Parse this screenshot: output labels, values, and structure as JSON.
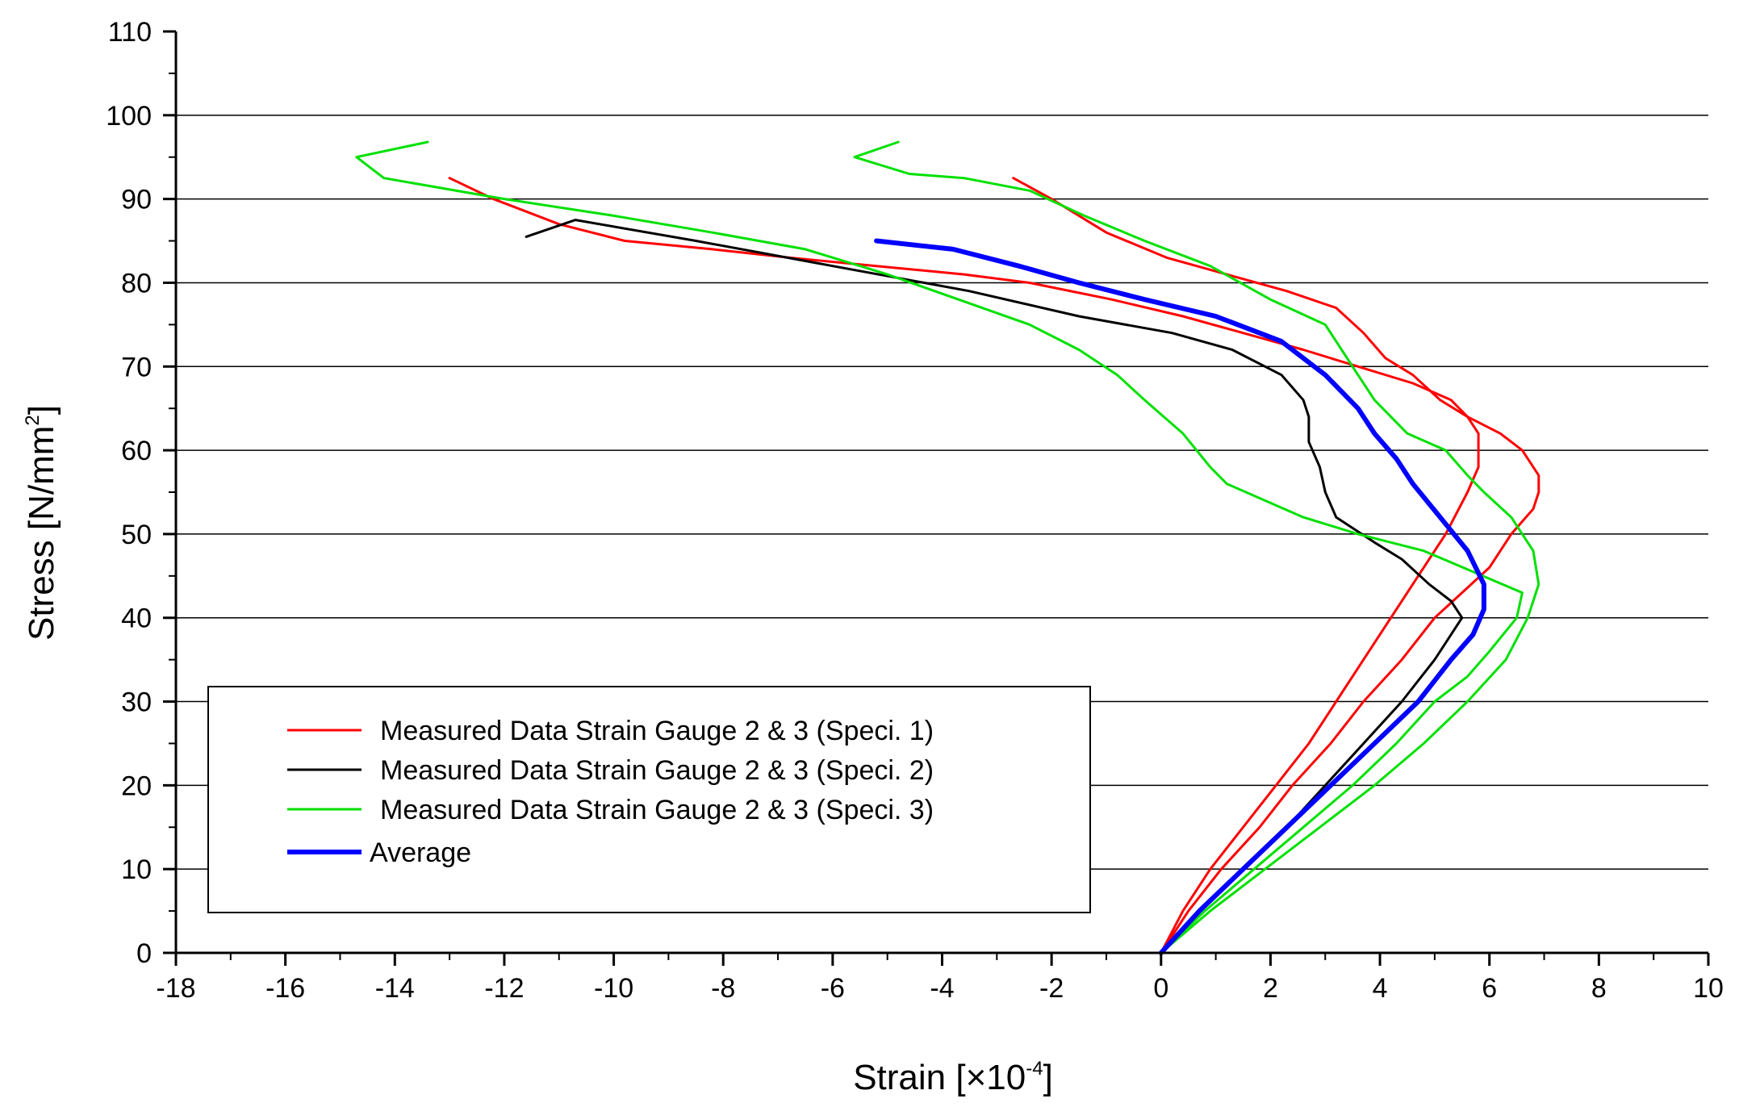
{
  "chart_data": {
    "type": "line",
    "xlabel_main": "Strain [×10",
    "xlabel_exp": "-4",
    "xlabel_end": "]",
    "ylabel_main": "Stress [N/mm",
    "ylabel_exp": "2",
    "ylabel_end": "]",
    "xlim": [
      -18,
      10
    ],
    "ylim": [
      0,
      110
    ],
    "x_ticks": [
      -18,
      -16,
      -14,
      -12,
      -10,
      -8,
      -6,
      -4,
      -2,
      0,
      2,
      4,
      6,
      8,
      10
    ],
    "x_tick_labels": [
      "-18",
      "-16",
      "-14",
      "-12",
      "-10",
      "-8",
      "-6",
      "-4",
      "-2",
      "0",
      "2",
      "4",
      "6",
      "8",
      "10"
    ],
    "y_ticks": [
      0,
      10,
      20,
      30,
      40,
      50,
      60,
      70,
      80,
      90,
      100,
      110
    ],
    "y_tick_labels": [
      "0",
      "10",
      "20",
      "30",
      "40",
      "50",
      "60",
      "70",
      "80",
      "90",
      "100",
      "110"
    ],
    "grid": "horizontal",
    "legend_position": "bottom-left",
    "series": [
      {
        "name": "Measured Data Strain Gauge 2 & 3 (Speci. 1) curve A",
        "legend": "Measured Data Strain Gauge 2 & 3 (Speci. 1)",
        "color": "#ff0000",
        "width": 3,
        "x": [
          0.0,
          0.4,
          0.9,
          1.5,
          2.1,
          2.7,
          3.2,
          3.7,
          4.2,
          4.7,
          5.2,
          5.6,
          5.8,
          5.8,
          5.8,
          5.6,
          5.3,
          4.6,
          3.6,
          2.6,
          1.5,
          0.4,
          -0.9,
          -2.4,
          -3.6,
          -5.2,
          -6.8,
          -8.2,
          -9.8,
          -11.0,
          -12.2,
          -13.0
        ],
        "y": [
          0,
          5,
          10,
          15,
          20,
          25,
          30,
          35,
          40,
          45,
          50,
          55,
          58,
          60,
          62,
          64,
          66,
          68,
          70,
          72,
          74,
          76,
          78,
          80,
          81,
          82,
          83,
          84,
          85,
          87,
          90,
          92.5
        ]
      },
      {
        "name": "Measured Data Strain Gauge 2 & 3 (Speci. 1) curve B",
        "legend": "",
        "color": "#ff0000",
        "width": 3,
        "x": [
          0.0,
          0.5,
          1.1,
          1.8,
          2.4,
          3.1,
          3.7,
          4.4,
          5.0,
          5.5,
          6.0,
          6.4,
          6.8,
          6.9,
          6.9,
          6.6,
          6.2,
          5.6,
          5.1,
          4.6,
          4.1,
          3.7,
          3.2,
          2.3,
          1.2,
          0.1,
          -1.0,
          -2.0,
          -2.7
        ],
        "y": [
          0,
          5,
          10,
          15,
          20,
          25,
          30,
          35,
          40,
          43,
          46,
          50,
          53,
          55,
          57,
          60,
          62,
          64,
          66,
          69,
          71,
          74,
          77,
          79,
          81,
          83,
          86,
          90,
          92.5
        ]
      },
      {
        "name": "Measured Data Strain Gauge 2 & 3 (Speci. 2)",
        "legend": "Measured Data Strain Gauge 2 & 3 (Speci. 2)",
        "color": "#000000",
        "width": 3,
        "x": [
          0.0,
          0.7,
          1.5,
          2.3,
          3.0,
          3.7,
          4.4,
          5.0,
          5.4,
          5.5,
          5.3,
          4.9,
          4.4,
          3.9,
          3.2,
          3.0,
          2.9,
          2.7,
          2.7,
          2.6,
          2.2,
          1.3,
          0.2,
          -1.5,
          -3.5,
          -6.0,
          -8.5,
          -10.7,
          -11.6
        ],
        "y": [
          0,
          5,
          10,
          15,
          20,
          25,
          30,
          35,
          39,
          40,
          42,
          44,
          47,
          49,
          52,
          55,
          58,
          61,
          64,
          66,
          69,
          72,
          74,
          76,
          79,
          82,
          85,
          87.5,
          85.5
        ]
      },
      {
        "name": "Measured Data Strain Gauge 2 & 3 (Speci. 3) curve A",
        "legend": "Measured Data Strain Gauge 2 & 3 (Speci. 3)",
        "color": "#00e000",
        "width": 3,
        "x": [
          0.0,
          0.8,
          1.7,
          2.6,
          3.5,
          4.3,
          5.0,
          5.6,
          6.0,
          6.5,
          6.6,
          4.8,
          3.6,
          2.6,
          1.9,
          1.2,
          0.9,
          0.4,
          -0.3,
          -0.8,
          -1.5,
          -2.4,
          -3.7,
          -5.0,
          -6.5,
          -8.2,
          -10.0,
          -12.0,
          -14.2,
          -14.7,
          -13.4
        ],
        "y": [
          0,
          5,
          10,
          15,
          20,
          25,
          30,
          33,
          36,
          40,
          43,
          48,
          50,
          52,
          54,
          56,
          58,
          62,
          66,
          69,
          72,
          75,
          78,
          81,
          84,
          86,
          88,
          90,
          92.5,
          95,
          96.8
        ]
      },
      {
        "name": "Measured Data Strain Gauge 2 & 3 (Speci. 3) curve B",
        "legend": "",
        "color": "#00e000",
        "width": 3,
        "x": [
          0.0,
          0.9,
          1.9,
          2.9,
          3.9,
          4.8,
          5.6,
          6.3,
          6.7,
          6.9,
          6.8,
          6.4,
          5.9,
          5.6,
          5.2,
          4.5,
          3.9,
          3.6,
          3.0,
          2.0,
          0.9,
          -0.3,
          -1.4,
          -2.4,
          -3.6,
          -4.6,
          -5.6,
          -4.8
        ],
        "y": [
          0,
          5,
          10,
          15,
          20,
          25,
          30,
          35,
          40,
          44,
          48,
          52,
          55,
          57,
          60,
          62,
          66,
          69,
          75,
          78,
          82,
          85,
          88,
          91,
          92.5,
          93,
          95,
          96.8
        ]
      },
      {
        "name": "Average",
        "legend": "Average",
        "color": "#0000ff",
        "width": 6,
        "x": [
          0.0,
          0.7,
          1.5,
          2.3,
          3.1,
          3.9,
          4.7,
          5.3,
          5.7,
          5.9,
          5.9,
          5.6,
          5.1,
          4.6,
          4.3,
          3.9,
          3.6,
          3.0,
          2.2,
          1.0,
          -0.3,
          -1.5,
          -2.6,
          -3.8,
          -5.2
        ],
        "y": [
          0,
          5,
          10,
          15,
          20,
          25,
          30,
          35,
          38,
          41,
          44,
          48,
          52,
          56,
          59,
          62,
          65,
          69,
          73,
          76,
          78,
          80,
          82,
          84,
          85
        ]
      }
    ]
  }
}
